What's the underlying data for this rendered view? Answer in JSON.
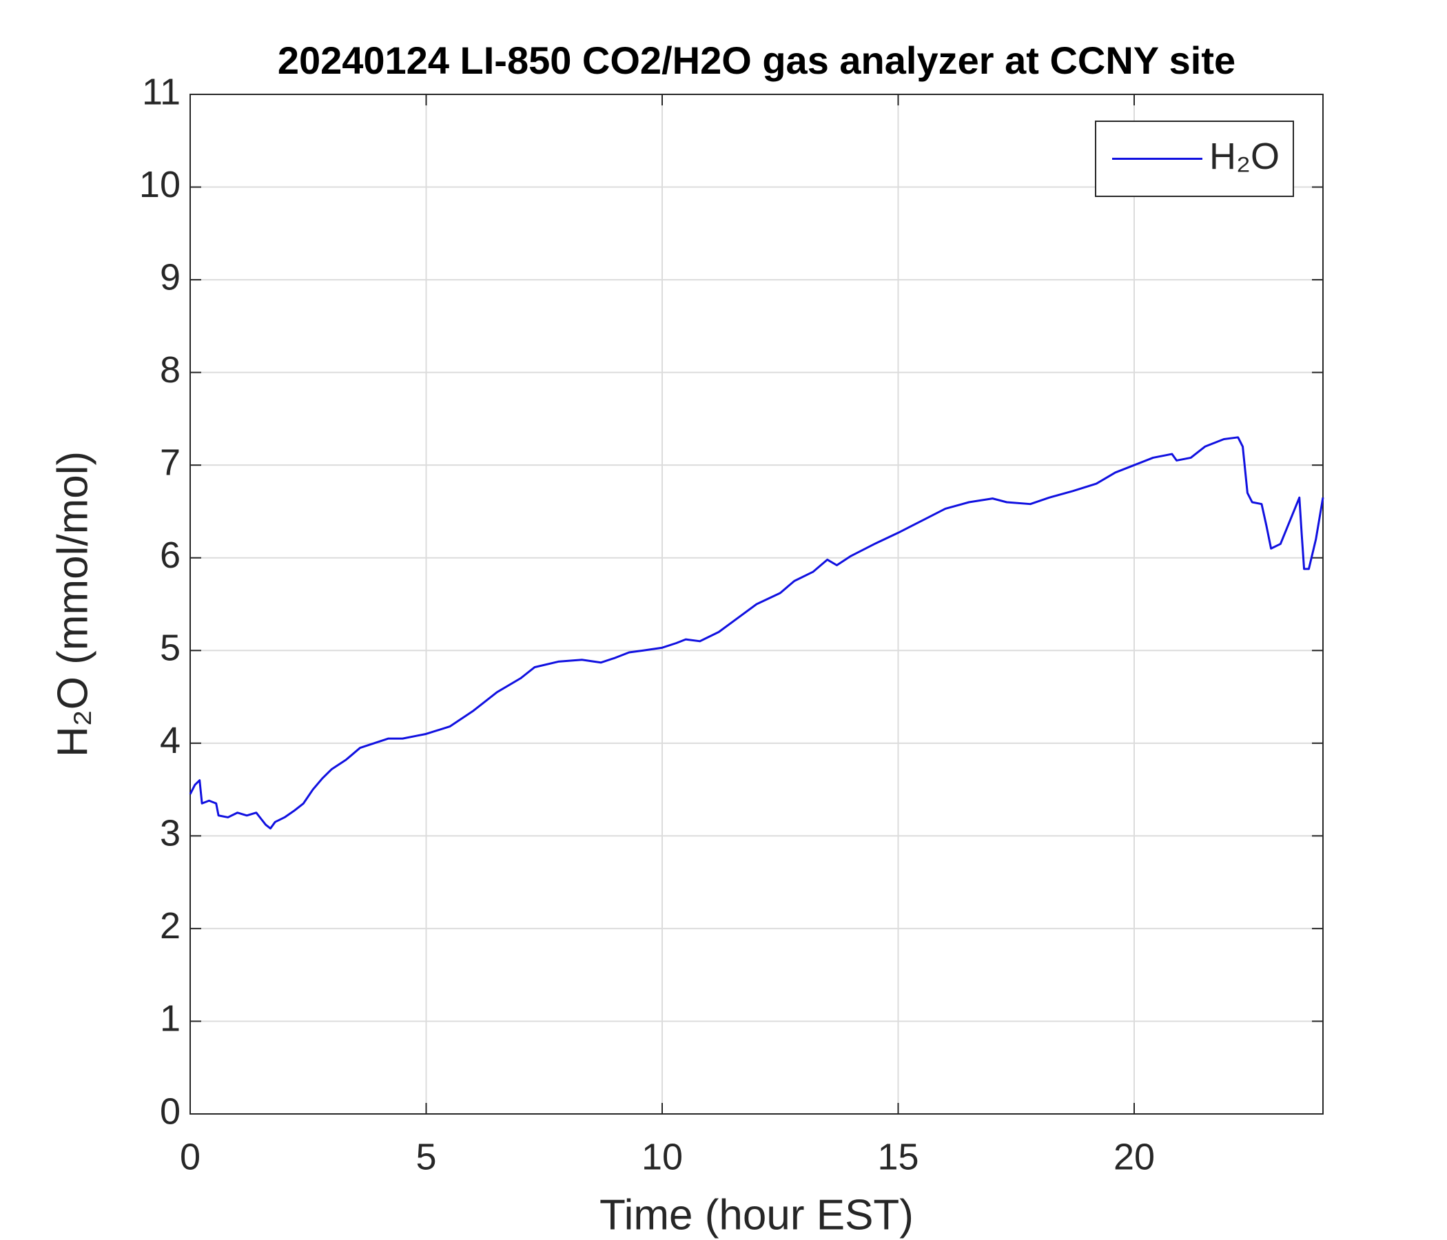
{
  "chart_data": {
    "type": "line",
    "title": "20240124 LI-850 CO2/H2O gas analyzer at CCNY site",
    "xlabel": "Time (hour EST)",
    "ylabel": "H₂O (mmol/mol)",
    "x": [
      0,
      0.1,
      0.2,
      0.25,
      0.4,
      0.55,
      0.6,
      0.8,
      1.0,
      1.2,
      1.4,
      1.6,
      1.7,
      1.8,
      2.0,
      2.2,
      2.4,
      2.6,
      2.8,
      3.0,
      3.3,
      3.6,
      3.9,
      4.2,
      4.5,
      4.8,
      5.0,
      5.5,
      6.0,
      6.5,
      7.0,
      7.3,
      7.8,
      8.3,
      8.7,
      9.0,
      9.3,
      9.6,
      10.0,
      10.3,
      10.5,
      10.8,
      11.2,
      11.6,
      12.0,
      12.5,
      12.8,
      13.2,
      13.5,
      13.7,
      14.0,
      14.5,
      15.0,
      15.5,
      16.0,
      16.5,
      17.0,
      17.3,
      17.8,
      18.2,
      18.7,
      19.2,
      19.6,
      20.0,
      20.4,
      20.8,
      20.9,
      21.2,
      21.5,
      21.9,
      22.2,
      22.3,
      22.4,
      22.5,
      22.7,
      22.8,
      22.9,
      23.1,
      23.3,
      23.5,
      23.55,
      23.6,
      23.7,
      23.85,
      24.0
    ],
    "series": [
      {
        "name": "H₂O",
        "color": "#1010e0",
        "values": [
          3.45,
          3.55,
          3.6,
          3.35,
          3.38,
          3.35,
          3.22,
          3.2,
          3.25,
          3.22,
          3.25,
          3.12,
          3.08,
          3.15,
          3.2,
          3.27,
          3.35,
          3.5,
          3.62,
          3.72,
          3.82,
          3.95,
          4.0,
          4.05,
          4.05,
          4.08,
          4.1,
          4.18,
          4.35,
          4.55,
          4.7,
          4.82,
          4.88,
          4.9,
          4.87,
          4.92,
          4.98,
          5.0,
          5.03,
          5.08,
          5.12,
          5.1,
          5.2,
          5.35,
          5.5,
          5.62,
          5.75,
          5.85,
          5.98,
          5.92,
          6.02,
          6.15,
          6.27,
          6.4,
          6.53,
          6.6,
          6.64,
          6.6,
          6.58,
          6.65,
          6.72,
          6.8,
          6.92,
          7.0,
          7.08,
          7.12,
          7.05,
          7.08,
          7.2,
          7.28,
          7.3,
          7.2,
          6.7,
          6.6,
          6.58,
          6.35,
          6.1,
          6.15,
          6.4,
          6.65,
          6.25,
          5.88,
          5.88,
          6.2,
          6.65
        ]
      }
    ],
    "xlim": [
      0,
      24
    ],
    "xticks": [
      0,
      5,
      10,
      15,
      20
    ],
    "ylim": [
      0,
      11
    ],
    "yticks": [
      0,
      1,
      2,
      3,
      4,
      5,
      6,
      7,
      8,
      9,
      10,
      11
    ],
    "grid": true,
    "legend": "upper right"
  }
}
